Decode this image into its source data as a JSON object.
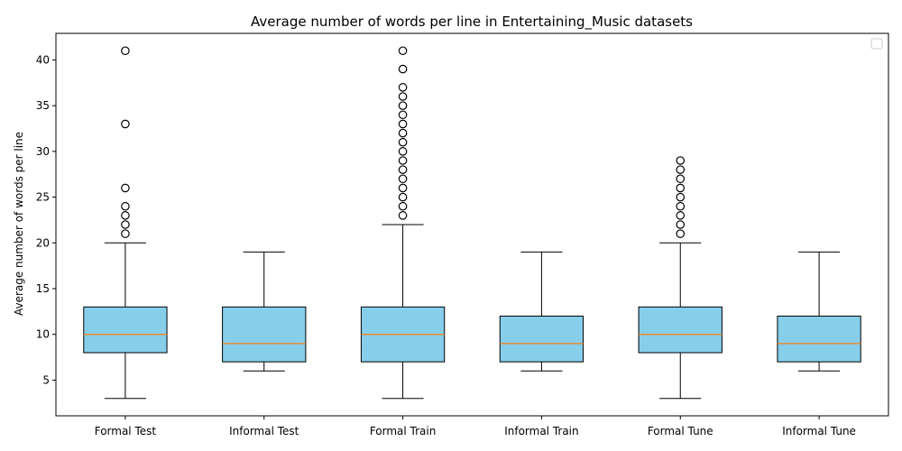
{
  "chart_data": {
    "type": "box",
    "title": "Average number of words per line in Entertaining_Music datasets",
    "xlabel": "",
    "ylabel": "Average number of words per line",
    "ylim": [
      1.1,
      42.9
    ],
    "yticks": [
      5,
      10,
      15,
      20,
      25,
      30,
      35,
      40
    ],
    "grid": false,
    "legend": {
      "placement": "top-right",
      "entries": []
    },
    "colors": {
      "box_fill": "#87ceeb",
      "median": "#ff7f0e",
      "line": "#000000"
    },
    "categories": [
      "Formal Test",
      "Informal Test",
      "Formal Train",
      "Informal Train",
      "Formal Tune",
      "Informal Tune"
    ],
    "boxes": [
      {
        "label": "Formal Test",
        "whisker_low": 3,
        "q1": 8,
        "median": 10,
        "q3": 13,
        "whisker_high": 20,
        "outliers": [
          21,
          22,
          23,
          24,
          26,
          33,
          41
        ]
      },
      {
        "label": "Informal Test",
        "whisker_low": 6,
        "q1": 7,
        "median": 9,
        "q3": 13,
        "whisker_high": 19,
        "outliers": []
      },
      {
        "label": "Formal Train",
        "whisker_low": 3,
        "q1": 7,
        "median": 10,
        "q3": 13,
        "whisker_high": 22,
        "outliers": [
          23,
          24,
          25,
          26,
          27,
          28,
          29,
          30,
          31,
          32,
          33,
          34,
          35,
          36,
          37,
          39,
          41
        ]
      },
      {
        "label": "Informal Train",
        "whisker_low": 6,
        "q1": 7,
        "median": 9,
        "q3": 12,
        "whisker_high": 19,
        "outliers": []
      },
      {
        "label": "Formal Tune",
        "whisker_low": 3,
        "q1": 8,
        "median": 10,
        "q3": 13,
        "whisker_high": 20,
        "outliers": [
          21,
          22,
          23,
          24,
          25,
          26,
          27,
          28,
          29
        ]
      },
      {
        "label": "Informal Tune",
        "whisker_low": 6,
        "q1": 7,
        "median": 9,
        "q3": 12,
        "whisker_high": 19,
        "outliers": []
      }
    ]
  }
}
